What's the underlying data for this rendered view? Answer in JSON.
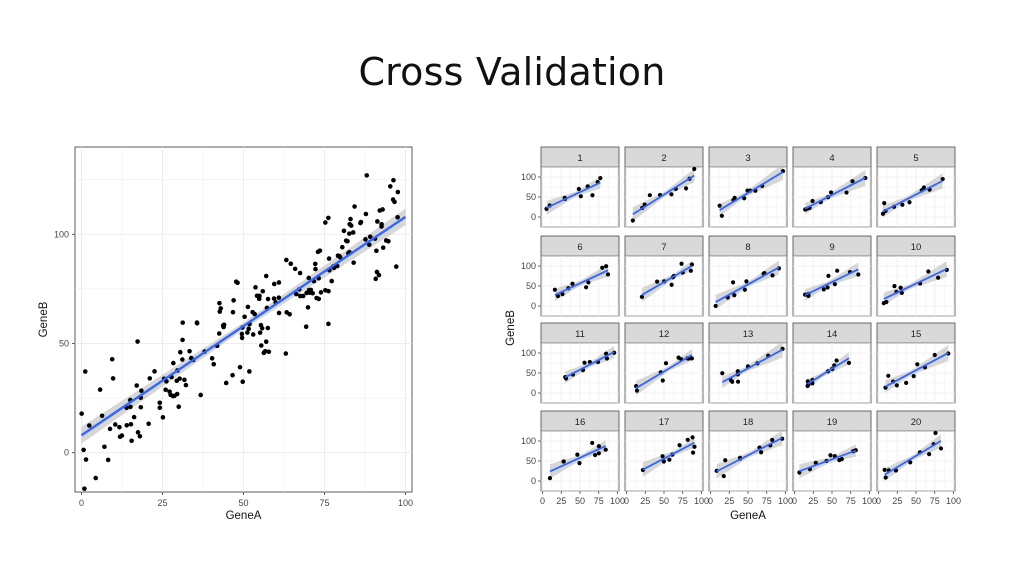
{
  "slide": {
    "title": "Cross Validation"
  },
  "colors": {
    "fit_line": "#3366FF",
    "ci_band": "#BDBDBD",
    "point": "#000000",
    "strip_bg": "#D9D9D9",
    "grid": "#EBEBEB"
  },
  "chart_data": [
    {
      "type": "scatter",
      "title": "",
      "xlabel": "GeneA",
      "ylabel": "GeneB",
      "xlim": [
        -2,
        102
      ],
      "ylim": [
        -18,
        140
      ],
      "xticks": [
        "0",
        "25",
        "50",
        "75",
        "100"
      ],
      "yticks": [
        "0",
        "50",
        "100"
      ],
      "grid": true,
      "smooth": {
        "method": "lm",
        "intercept": 8,
        "slope": 1.0,
        "band": true
      },
      "points_count": 200
    },
    {
      "type": "scatter",
      "title": "",
      "xlabel": "GeneA",
      "ylabel": "GeneB",
      "facets": [
        "1",
        "2",
        "3",
        "4",
        "5",
        "6",
        "7",
        "8",
        "9",
        "10",
        "11",
        "12",
        "13",
        "14",
        "15",
        "16",
        "17",
        "18",
        "19",
        "20"
      ],
      "facet_layout": "4 rows x 5 columns",
      "xlim": [
        -2,
        102
      ],
      "ylim": [
        -25,
        125
      ],
      "xticks": [
        "0",
        "25",
        "50",
        "75",
        "100"
      ],
      "yticks": [
        "0",
        "50",
        "100"
      ],
      "smooth": {
        "method": "lm",
        "band": true
      },
      "points_per_facet": 10
    }
  ]
}
